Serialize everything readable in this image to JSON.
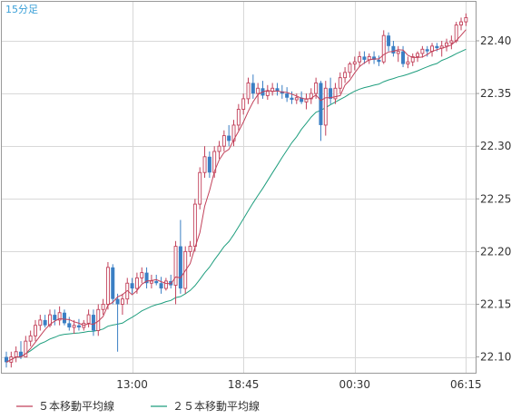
{
  "chart_data": {
    "type": "candlestick",
    "timeframe": "15分足",
    "y_ticks": [
      "22.40",
      "22.35",
      "22.30",
      "22.25",
      "22.20",
      "22.15",
      "22.10"
    ],
    "y_tick_values": [
      22.4,
      22.35,
      22.3,
      22.25,
      22.2,
      22.15,
      22.1
    ],
    "ylim": [
      22.085,
      22.437
    ],
    "x_ticks": [
      "13:00",
      "18:45",
      "00:30",
      "06:15"
    ],
    "x_tick_index": [
      26,
      49,
      72,
      95
    ],
    "legend": [
      {
        "label": "５本移動平均線",
        "color": "#c2415a"
      },
      {
        "label": "２５本移動平均線",
        "color": "#1f9e7e"
      }
    ],
    "colors": {
      "up": "#c2415a",
      "down": "#3a7fc4",
      "grid": "#d8d8d8",
      "axis": "#999999"
    },
    "grid": true,
    "candles": [
      [
        22.1,
        22.105,
        22.09,
        22.095
      ],
      [
        22.095,
        22.105,
        22.09,
        22.1
      ],
      [
        22.1,
        22.11,
        22.095,
        22.105
      ],
      [
        22.105,
        22.115,
        22.098,
        22.1
      ],
      [
        22.1,
        22.12,
        22.1,
        22.115
      ],
      [
        22.115,
        22.125,
        22.11,
        22.12
      ],
      [
        22.12,
        22.135,
        22.115,
        22.13
      ],
      [
        22.13,
        22.14,
        22.125,
        22.135
      ],
      [
        22.135,
        22.14,
        22.128,
        22.13
      ],
      [
        22.13,
        22.145,
        22.128,
        22.14
      ],
      [
        22.14,
        22.145,
        22.13,
        22.135
      ],
      [
        22.135,
        22.148,
        22.13,
        22.142
      ],
      [
        22.142,
        22.145,
        22.13,
        22.132
      ],
      [
        22.132,
        22.138,
        22.125,
        22.128
      ],
      [
        22.128,
        22.135,
        22.122,
        22.13
      ],
      [
        22.13,
        22.136,
        22.125,
        22.128
      ],
      [
        22.128,
        22.135,
        22.125,
        22.132
      ],
      [
        22.132,
        22.145,
        22.128,
        22.14
      ],
      [
        22.14,
        22.145,
        22.12,
        22.125
      ],
      [
        22.125,
        22.15,
        22.12,
        22.145
      ],
      [
        22.145,
        22.155,
        22.14,
        22.15
      ],
      [
        22.15,
        22.19,
        22.145,
        22.185
      ],
      [
        22.185,
        22.188,
        22.15,
        22.155
      ],
      [
        22.155,
        22.16,
        22.105,
        22.15
      ],
      [
        22.15,
        22.16,
        22.14,
        22.155
      ],
      [
        22.155,
        22.175,
        22.15,
        22.17
      ],
      [
        22.17,
        22.175,
        22.16,
        22.165
      ],
      [
        22.165,
        22.18,
        22.16,
        22.175
      ],
      [
        22.175,
        22.185,
        22.17,
        22.18
      ],
      [
        22.18,
        22.185,
        22.165,
        22.17
      ],
      [
        22.17,
        22.178,
        22.165,
        22.172
      ],
      [
        22.172,
        22.178,
        22.168,
        22.17
      ],
      [
        22.17,
        22.176,
        22.16,
        22.165
      ],
      [
        22.165,
        22.175,
        22.163,
        22.172
      ],
      [
        22.172,
        22.178,
        22.165,
        22.168
      ],
      [
        22.168,
        22.21,
        22.15,
        22.205
      ],
      [
        22.205,
        22.23,
        22.16,
        22.165
      ],
      [
        22.165,
        22.205,
        22.16,
        22.2
      ],
      [
        22.2,
        22.21,
        22.195,
        22.205
      ],
      [
        22.205,
        22.25,
        22.2,
        22.245
      ],
      [
        22.245,
        22.28,
        22.24,
        22.275
      ],
      [
        22.275,
        22.3,
        22.27,
        22.29
      ],
      [
        22.29,
        22.295,
        22.27,
        22.275
      ],
      [
        22.275,
        22.3,
        22.27,
        22.295
      ],
      [
        22.295,
        22.305,
        22.288,
        22.3
      ],
      [
        22.3,
        22.315,
        22.295,
        22.31
      ],
      [
        22.31,
        22.32,
        22.3,
        22.305
      ],
      [
        22.305,
        22.325,
        22.3,
        22.32
      ],
      [
        22.32,
        22.34,
        22.315,
        22.335
      ],
      [
        22.335,
        22.35,
        22.33,
        22.345
      ],
      [
        22.345,
        22.365,
        22.34,
        22.36
      ],
      [
        22.36,
        22.368,
        22.345,
        22.35
      ],
      [
        22.35,
        22.36,
        22.34,
        22.355
      ],
      [
        22.355,
        22.362,
        22.345,
        22.348
      ],
      [
        22.348,
        22.358,
        22.344,
        22.352
      ],
      [
        22.352,
        22.36,
        22.348,
        22.355
      ],
      [
        22.355,
        22.36,
        22.348,
        22.352
      ],
      [
        22.352,
        22.358,
        22.345,
        22.35
      ],
      [
        22.35,
        22.356,
        22.342,
        22.346
      ],
      [
        22.346,
        22.352,
        22.34,
        22.344
      ],
      [
        22.344,
        22.35,
        22.34,
        22.346
      ],
      [
        22.346,
        22.352,
        22.34,
        22.342
      ],
      [
        22.342,
        22.35,
        22.335,
        22.345
      ],
      [
        22.345,
        22.355,
        22.34,
        22.35
      ],
      [
        22.35,
        22.365,
        22.345,
        22.36
      ],
      [
        22.36,
        22.362,
        22.305,
        22.32
      ],
      [
        22.32,
        22.362,
        22.31,
        22.355
      ],
      [
        22.355,
        22.365,
        22.34,
        22.345
      ],
      [
        22.345,
        22.36,
        22.34,
        22.355
      ],
      [
        22.355,
        22.37,
        22.35,
        22.365
      ],
      [
        22.365,
        22.375,
        22.36,
        22.37
      ],
      [
        22.37,
        22.38,
        22.365,
        22.378
      ],
      [
        22.378,
        22.385,
        22.372,
        22.38
      ],
      [
        22.38,
        22.39,
        22.375,
        22.385
      ],
      [
        22.385,
        22.39,
        22.378,
        22.382
      ],
      [
        22.382,
        22.388,
        22.378,
        22.385
      ],
      [
        22.385,
        22.39,
        22.378,
        22.382
      ],
      [
        22.382,
        22.386,
        22.376,
        22.38
      ],
      [
        22.38,
        22.41,
        22.378,
        22.405
      ],
      [
        22.405,
        22.408,
        22.39,
        22.395
      ],
      [
        22.395,
        22.4,
        22.385,
        22.388
      ],
      [
        22.388,
        22.395,
        22.38,
        22.39
      ],
      [
        22.39,
        22.395,
        22.375,
        22.378
      ],
      [
        22.378,
        22.385,
        22.374,
        22.38
      ],
      [
        22.38,
        22.388,
        22.376,
        22.385
      ],
      [
        22.385,
        22.39,
        22.38,
        22.388
      ],
      [
        22.388,
        22.395,
        22.384,
        22.392
      ],
      [
        22.392,
        22.395,
        22.385,
        22.39
      ],
      [
        22.39,
        22.398,
        22.385,
        22.395
      ],
      [
        22.395,
        22.398,
        22.39,
        22.393
      ],
      [
        22.393,
        22.4,
        22.385,
        22.395
      ],
      [
        22.395,
        22.402,
        22.39,
        22.398
      ],
      [
        22.398,
        22.405,
        22.392,
        22.4
      ],
      [
        22.4,
        22.418,
        22.398,
        22.415
      ],
      [
        22.415,
        22.422,
        22.41,
        22.418
      ],
      [
        22.418,
        22.426,
        22.414,
        22.422
      ]
    ]
  }
}
